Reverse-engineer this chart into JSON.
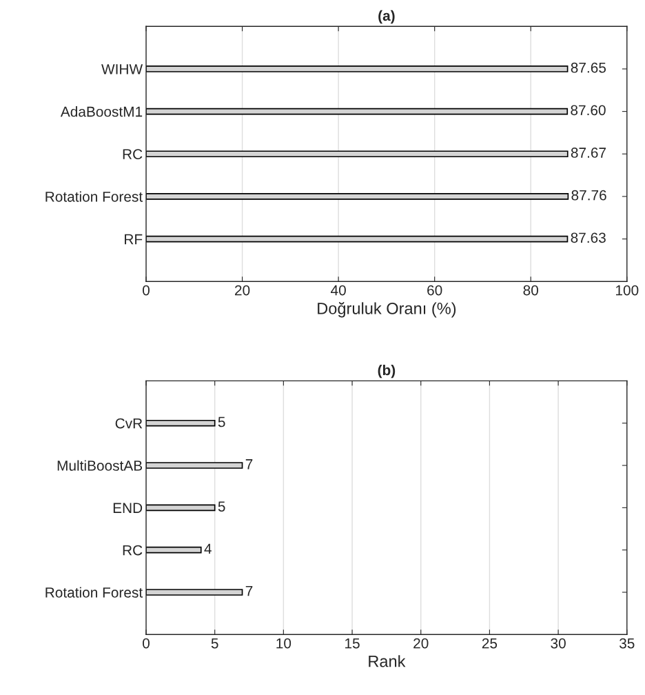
{
  "chart_data": [
    {
      "type": "bar",
      "orientation": "horizontal",
      "title": "(a)",
      "xlabel": "Doğruluk Oranı (%)",
      "categories": [
        "WIHW",
        "AdaBoostM1",
        "RC",
        "Rotation Forest",
        "RF"
      ],
      "values": [
        87.65,
        87.6,
        87.67,
        87.76,
        87.63
      ],
      "value_labels": [
        "87.65",
        "87.60",
        "87.67",
        "87.76",
        "87.63"
      ],
      "color": "#d4d4d4",
      "xlim": [
        0,
        100
      ],
      "xticks": [
        0,
        20,
        40,
        60,
        80,
        100
      ],
      "grid": "x",
      "legend": false
    },
    {
      "type": "bar",
      "orientation": "horizontal",
      "title": "(b)",
      "xlabel": "Rank",
      "categories": [
        "CvR",
        "MultiBoostAB",
        "END",
        "RC",
        "Rotation Forest"
      ],
      "values": [
        5,
        7,
        5,
        4,
        7
      ],
      "data_labels": true,
      "color": "#d4d4d4",
      "xlim": [
        0,
        35
      ],
      "xticks": [
        0,
        5,
        10,
        15,
        20,
        25,
        30,
        35
      ],
      "grid": "x",
      "legend": false
    }
  ]
}
